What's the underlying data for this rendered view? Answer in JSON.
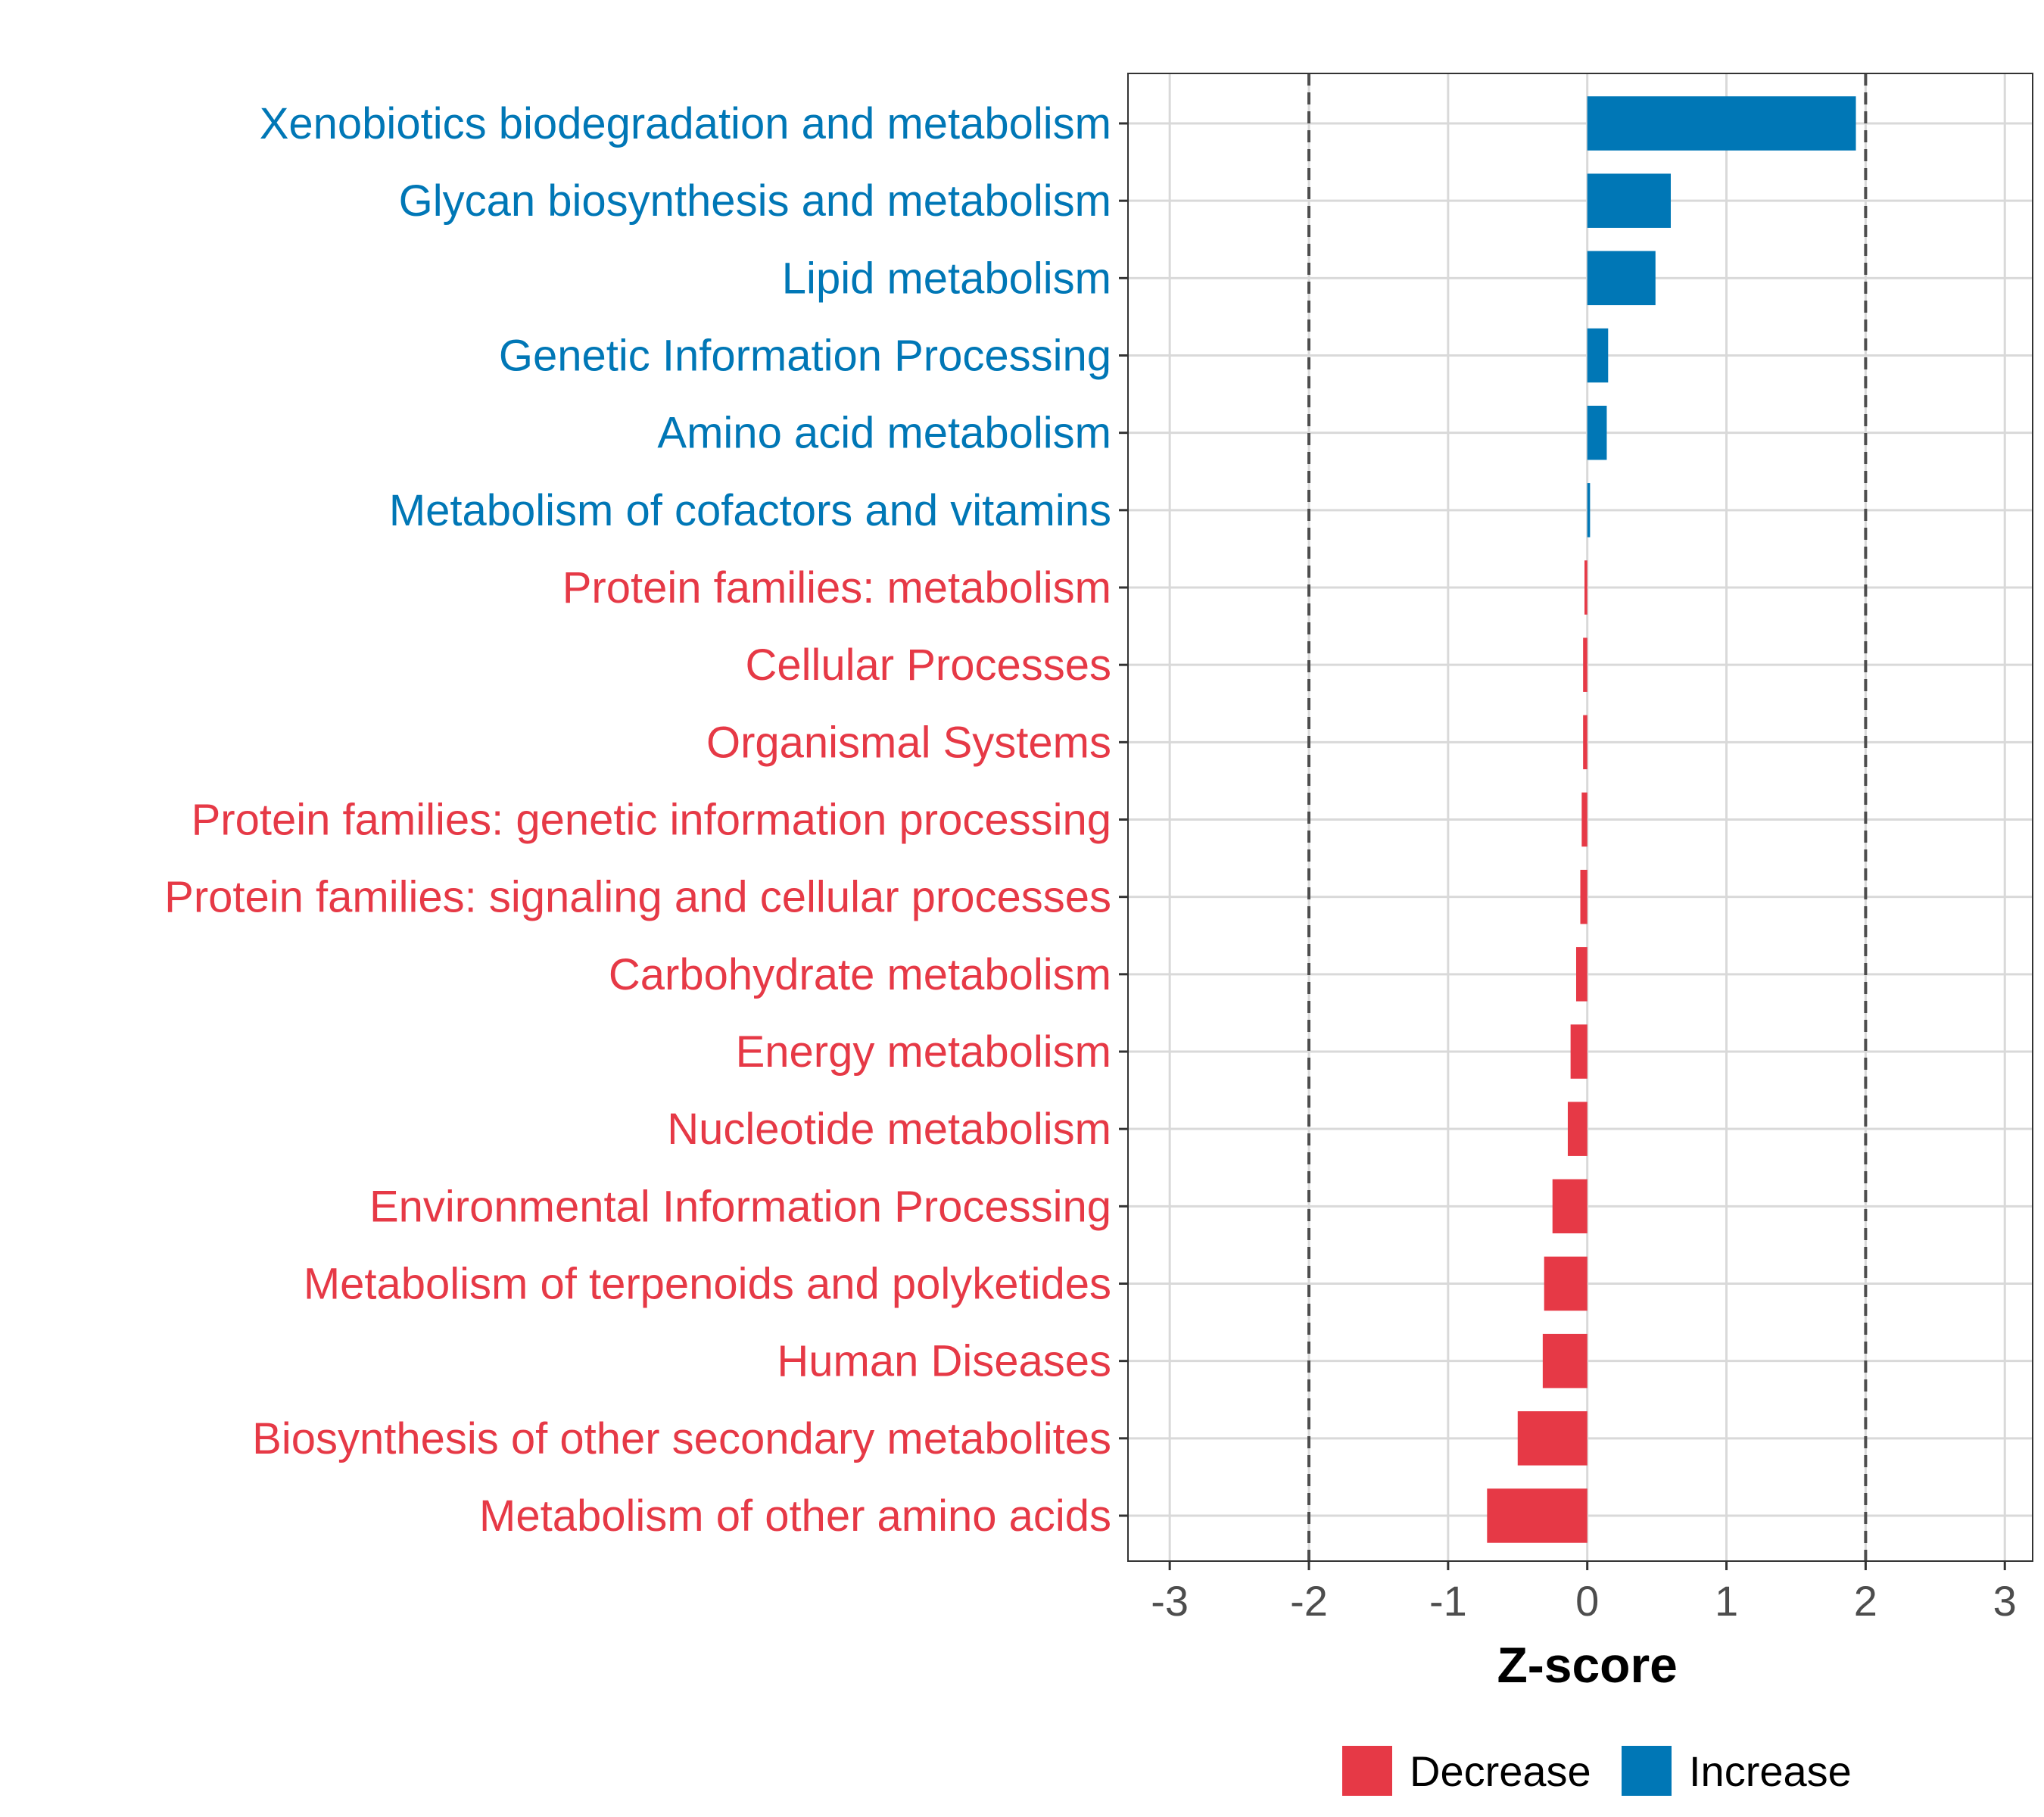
{
  "chart_data": {
    "type": "bar",
    "orientation": "horizontal",
    "title": "",
    "xlabel": "Z-score",
    "ylabel": "",
    "xlim": [
      -3.3,
      3.2
    ],
    "xticks": [
      -3,
      -2,
      -1,
      0,
      1,
      2,
      3
    ],
    "reference_lines": [
      -2,
      2
    ],
    "grid": true,
    "legend_position": "bottom",
    "colors": {
      "Decrease": "#E63946",
      "Increase": "#0077B6"
    },
    "categories": [
      "Xenobiotics biodegradation and metabolism",
      "Glycan biosynthesis and metabolism",
      "Lipid metabolism",
      "Genetic Information Processing",
      "Amino acid metabolism",
      "Metabolism of cofactors and vitamins",
      "Protein families: metabolism",
      "Cellular Processes",
      "Organismal Systems",
      "Protein families: genetic information processing",
      "Protein families: signaling and cellular processes",
      "Carbohydrate metabolism",
      "Energy metabolism",
      "Nucleotide metabolism",
      "Environmental Information Processing",
      "Metabolism of terpenoids and polyketides",
      "Human Diseases",
      "Biosynthesis of other secondary metabolites",
      "Metabolism of other amino acids"
    ],
    "values": [
      1.93,
      0.6,
      0.49,
      0.15,
      0.14,
      0.02,
      -0.02,
      -0.03,
      -0.03,
      -0.04,
      -0.05,
      -0.08,
      -0.12,
      -0.14,
      -0.25,
      -0.31,
      -0.32,
      -0.5,
      -0.72
    ],
    "groups": [
      "Increase",
      "Increase",
      "Increase",
      "Increase",
      "Increase",
      "Increase",
      "Decrease",
      "Decrease",
      "Decrease",
      "Decrease",
      "Decrease",
      "Decrease",
      "Decrease",
      "Decrease",
      "Decrease",
      "Decrease",
      "Decrease",
      "Decrease",
      "Decrease"
    ],
    "legend": [
      "Decrease",
      "Increase"
    ]
  }
}
